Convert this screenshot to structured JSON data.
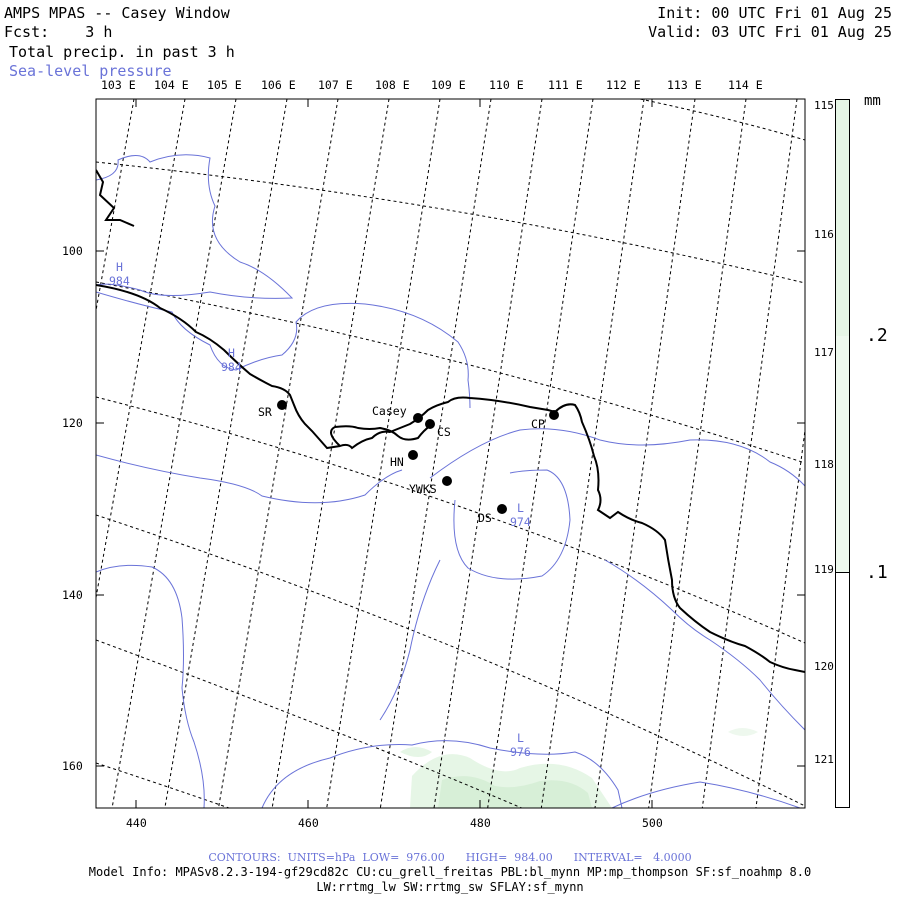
{
  "header": {
    "left_line1": "AMPS MPAS -- Casey Window",
    "left_line2": "Fcst:    3 h",
    "left_line3": "Total precip. in past 3 h",
    "left_line4": "Sea-level pressure",
    "right_line1": "Init: 00 UTC Fri 01 Aug 25",
    "right_line2": "Valid: 03 UTC Fri 01 Aug 25"
  },
  "map": {
    "top_lon_labels": [
      "103 E",
      "104 E",
      "105 E",
      "106 E",
      "107 E",
      "108 E",
      "109 E",
      "110 E",
      "111 E",
      "112 E",
      "113 E",
      "114 E"
    ],
    "right_lon_labels": [
      "115 E",
      "116 E",
      "117 E",
      "118 E",
      "119 E",
      "120 E",
      "121 E"
    ],
    "left_axis_ticks": [
      "100",
      "120",
      "140",
      "160"
    ],
    "bottom_axis_ticks": [
      "440",
      "460",
      "480",
      "500"
    ],
    "stations": [
      {
        "label": "SR"
      },
      {
        "label": "Casey"
      },
      {
        "label": "CS"
      },
      {
        "label": "CP"
      },
      {
        "label": "HN"
      },
      {
        "label": "YWKS"
      },
      {
        "label": "DS"
      }
    ],
    "pressure_labels": [
      {
        "letter": "H",
        "value": "984"
      },
      {
        "letter": "H",
        "value": "984"
      },
      {
        "letter": "L",
        "value": "974"
      },
      {
        "letter": "L",
        "value": "976"
      }
    ],
    "colors": {
      "contour": "#6a73d8",
      "precip_light": "#e6f6e6",
      "precip_mid": "#d2eed2",
      "coastline": "#000000"
    }
  },
  "colorbar": {
    "unit": "mm",
    "labels": [
      ".2",
      ".1"
    ]
  },
  "footer": {
    "contours_text": "CONTOURS:  UNITS=hPa  LOW=  976.00      HIGH=  984.00      INTERVAL=   4.0000",
    "model_info_1": "Model Info: MPASv8.2.3-194-gf29cd82c CU:cu_grell_freitas PBL:bl_mynn MP:mp_thompson SF:sf_noahmp 8.0",
    "model_info_2": "LW:rrtmg_lw SW:rrtmg_sw SFLAY:sf_mynn"
  }
}
